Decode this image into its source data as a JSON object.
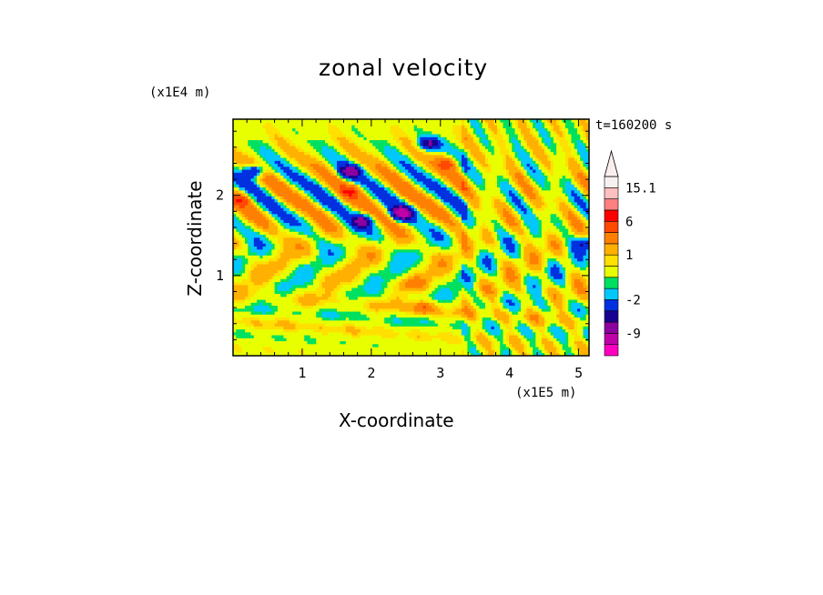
{
  "chart_data": {
    "type": "heatmap",
    "title": "zonal velocity",
    "xlabel": "X-coordinate",
    "ylabel": "Z-coordinate",
    "x_unit": "(x1E5 m)",
    "y_unit": "(x1E4 m)",
    "time_label": "t=160200 s",
    "xlim": [
      0,
      5.15
    ],
    "ylim": [
      0,
      2.95
    ],
    "x_ticks": [
      "1",
      "2",
      "3",
      "4",
      "5"
    ],
    "y_ticks": [
      "1",
      "2"
    ],
    "colorbar": {
      "levels": [
        -15.1,
        -12,
        -9,
        -6,
        -4,
        -2,
        -1,
        -0.5,
        0.5,
        1,
        2,
        4,
        6,
        9,
        12,
        15.1
      ],
      "labels": [
        "15.1",
        "6",
        "1",
        "-2",
        "-9"
      ],
      "colors": [
        "#ff00c0",
        "#c000a8",
        "#8c00a0",
        "#1a0090",
        "#0030e0",
        "#00c8ff",
        "#00e060",
        "#e8ff00",
        "#ffe000",
        "#ffb000",
        "#ff8000",
        "#ff4800",
        "#ff0000",
        "#ff8080",
        "#ffc0c0",
        "#f8f0f0"
      ],
      "extend": "max"
    },
    "field_features": [
      {
        "x": 0.3,
        "z": 2.3,
        "u": -6
      },
      {
        "x": 1.7,
        "z": 2.3,
        "u": -6
      },
      {
        "x": 1.85,
        "z": 1.68,
        "u": -6
      },
      {
        "x": 2.45,
        "z": 1.78,
        "u": -9
      },
      {
        "x": 2.85,
        "z": 2.65,
        "u": -6
      },
      {
        "x": 5.1,
        "z": 1.4,
        "u": -4
      },
      {
        "x": 1.7,
        "z": 2.05,
        "u": 4
      },
      {
        "x": 2.75,
        "z": 0.6,
        "u": 4
      },
      {
        "x": 3.1,
        "z": 2.4,
        "u": 4
      },
      {
        "x": 0.1,
        "z": 1.95,
        "u": 4
      },
      {
        "x": 2.6,
        "z": 0.9,
        "u": 2
      }
    ]
  }
}
